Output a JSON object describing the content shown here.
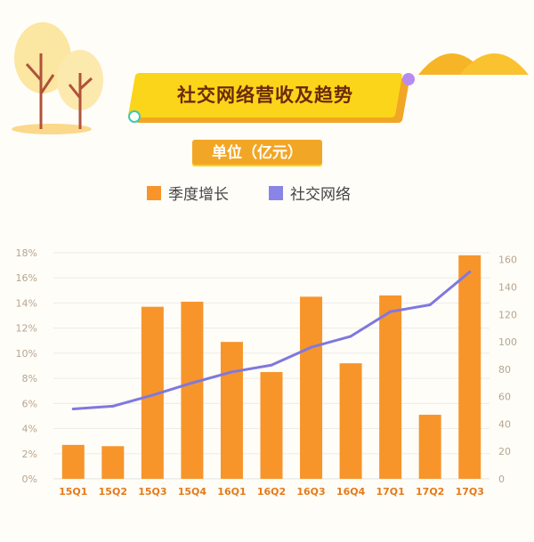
{
  "title": "社交网络营收及趋势",
  "unit": "单位（亿元）",
  "colors": {
    "bar": "#f7952b",
    "line": "#7f78de",
    "banner": "#fbd51a",
    "accent": "#f2a625"
  },
  "chart_data": {
    "type": "bar",
    "categories": [
      "15Q1",
      "15Q2",
      "15Q3",
      "15Q4",
      "16Q1",
      "16Q2",
      "16Q3",
      "16Q4",
      "17Q1",
      "17Q2",
      "17Q3"
    ],
    "series": [
      {
        "name": "季度增长",
        "type": "bar",
        "axis": "left",
        "values": [
          2.7,
          2.6,
          13.7,
          14.1,
          10.9,
          8.5,
          14.5,
          9.2,
          14.6,
          5.1,
          17.8
        ]
      },
      {
        "name": "社交网络",
        "type": "line",
        "axis": "right",
        "values": [
          51,
          53,
          61,
          70,
          78,
          83,
          96,
          104,
          122,
          127,
          151
        ]
      }
    ],
    "left_axis": {
      "ticks": [
        "0%",
        "2%",
        "4%",
        "6%",
        "8%",
        "10%",
        "12%",
        "14%",
        "16%",
        "18%"
      ],
      "ylim": [
        0,
        18
      ]
    },
    "right_axis": {
      "ticks": [
        "0",
        "20",
        "40",
        "60",
        "80",
        "100",
        "120",
        "140",
        "160"
      ],
      "ylim": [
        0,
        165
      ]
    },
    "grid": true,
    "legend": "top"
  }
}
